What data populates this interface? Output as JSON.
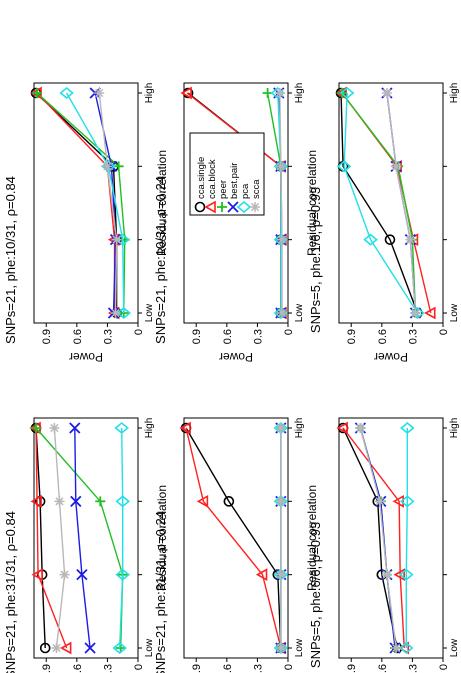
{
  "figure": {
    "orientation": "rotated 90° counter-clockwise",
    "panels": 6
  },
  "legend": [
    {
      "name": "cca.single",
      "color": "#000000",
      "marker": "circle"
    },
    {
      "name": "cca.block",
      "color": "#ff2020",
      "marker": "triangle"
    },
    {
      "name": "peer",
      "color": "#22c022",
      "marker": "plus"
    },
    {
      "name": "best.pair",
      "color": "#1c1ce6",
      "marker": "x"
    },
    {
      "name": "pca",
      "color": "#22e0e6",
      "marker": "diamond"
    },
    {
      "name": "scca",
      "color": "#b8b8b8",
      "marker": "asterisk"
    }
  ],
  "chart_data": [
    {
      "type": "line",
      "title": "SNPs=5, phe:1/6, ρ=0.93",
      "xlabel": "Residual correlation",
      "ylabel": "Power",
      "x_ticks": [
        "Low",
        "High"
      ],
      "y_ticks": [
        "0",
        "0.3",
        "0.6",
        "0.9"
      ],
      "ylim": [
        0,
        1.02
      ],
      "x": [
        1,
        2,
        3,
        4
      ],
      "series": [
        {
          "name": "cca.single",
          "values": [
            0.25,
            0.52,
            0.98,
            1.0
          ]
        },
        {
          "name": "cca.block",
          "values": [
            0.12,
            0.29,
            0.45,
            0.99
          ]
        },
        {
          "name": "peer",
          "values": [
            0.27,
            0.3,
            0.44,
            0.99
          ]
        },
        {
          "name": "best.pair",
          "values": [
            0.27,
            0.32,
            0.46,
            0.55
          ]
        },
        {
          "name": "pca",
          "values": [
            0.25,
            0.71,
            0.97,
            0.94
          ]
        },
        {
          "name": "scca",
          "values": [
            0.27,
            0.32,
            0.46,
            0.55
          ]
        }
      ]
    },
    {
      "type": "line",
      "title": "SNPs=21, phe:10/31, ρ=0.24",
      "xlabel": "Residual correlation",
      "ylabel": "Power",
      "x_ticks": [
        "Low",
        "High"
      ],
      "y_ticks": [
        "0",
        "0.3",
        "0.6",
        "0.9"
      ],
      "ylim": [
        0,
        1.02
      ],
      "x": [
        1,
        2,
        3,
        4
      ],
      "series": [
        {
          "name": "cca.single",
          "values": [
            0.07,
            0.07,
            0.07,
            0.98
          ]
        },
        {
          "name": "cca.block",
          "values": [
            0.06,
            0.06,
            0.07,
            0.99
          ]
        },
        {
          "name": "peer",
          "values": [
            0.07,
            0.07,
            0.07,
            0.2
          ]
        },
        {
          "name": "best.pair",
          "values": [
            0.07,
            0.07,
            0.07,
            0.09
          ]
        },
        {
          "name": "pca",
          "values": [
            0.07,
            0.07,
            0.07,
            0.1
          ]
        },
        {
          "name": "scca",
          "values": [
            0.06,
            0.06,
            0.07,
            0.08
          ]
        }
      ]
    },
    {
      "type": "line",
      "title": "SNPs=21, phe:10/31, ρ=0.84",
      "xlabel": "Residual correlation",
      "ylabel": "Power",
      "x_ticks": [
        "Low",
        "High"
      ],
      "y_ticks": [
        "0",
        "0.3",
        "0.6",
        "0.9"
      ],
      "ylim": [
        0,
        1.02
      ],
      "x": [
        1,
        2,
        3,
        4
      ],
      "series": [
        {
          "name": "cca.single",
          "values": [
            0.21,
            0.21,
            0.24,
            1.0
          ]
        },
        {
          "name": "cca.block",
          "values": [
            0.23,
            0.23,
            0.3,
            0.99
          ]
        },
        {
          "name": "peer",
          "values": [
            0.14,
            0.13,
            0.19,
            0.99
          ]
        },
        {
          "name": "best.pair",
          "values": [
            0.24,
            0.22,
            0.26,
            0.42
          ]
        },
        {
          "name": "pca",
          "values": [
            0.14,
            0.15,
            0.29,
            0.7
          ]
        },
        {
          "name": "scca",
          "values": [
            0.22,
            0.21,
            0.3,
            0.38
          ]
        }
      ]
    },
    {
      "type": "line",
      "title": "SNPs=5, phe:6/6, ρ=0.93",
      "xlabel": "Residual correlation",
      "ylabel": "Power",
      "x_ticks": [
        "Low",
        "High"
      ],
      "y_ticks": [
        "0",
        "0.3",
        "0.6",
        "0.9"
      ],
      "ylim": [
        0,
        1.02
      ],
      "x": [
        1,
        2,
        3,
        4
      ],
      "series": [
        {
          "name": "cca.single",
          "values": [
            0.45,
            0.6,
            0.64,
            0.98
          ]
        },
        {
          "name": "cca.block",
          "values": [
            0.38,
            0.42,
            0.43,
            0.98
          ]
        },
        {
          "name": "peer",
          "values": [
            0.47,
            0.55,
            0.61,
            0.81
          ]
        },
        {
          "name": "best.pair",
          "values": [
            0.47,
            0.55,
            0.61,
            0.81
          ]
        },
        {
          "name": "pca",
          "values": [
            0.36,
            0.36,
            0.35,
            0.35
          ]
        },
        {
          "name": "scca",
          "values": [
            0.46,
            0.55,
            0.62,
            0.81
          ]
        }
      ]
    },
    {
      "type": "line",
      "title": "SNPs=21, phe:31/31, ρ=0.24",
      "xlabel": "Residual correlation",
      "ylabel": "Power",
      "x_ticks": [
        "Low",
        "High"
      ],
      "y_ticks": [
        "0",
        "0.3",
        "0.6",
        "0.9"
      ],
      "ylim": [
        0,
        1.02
      ],
      "x": [
        1,
        2,
        3,
        4
      ],
      "series": [
        {
          "name": "cca.single",
          "values": [
            0.07,
            0.1,
            0.58,
            1.0
          ]
        },
        {
          "name": "cca.block",
          "values": [
            0.07,
            0.25,
            0.83,
            1.0
          ]
        },
        {
          "name": "peer",
          "values": [
            0.07,
            0.07,
            0.07,
            0.07
          ]
        },
        {
          "name": "best.pair",
          "values": [
            0.07,
            0.07,
            0.07,
            0.07
          ]
        },
        {
          "name": "pca",
          "values": [
            0.07,
            0.07,
            0.07,
            0.07
          ]
        },
        {
          "name": "scca",
          "values": [
            0.07,
            0.07,
            0.07,
            0.07
          ]
        }
      ]
    },
    {
      "type": "line",
      "title": "SNPs=21, phe:31/31, ρ=0.84",
      "xlabel": "Residual correlation",
      "ylabel": "Power",
      "x_ticks": [
        "Low",
        "High"
      ],
      "y_ticks": [
        "0",
        "0.3",
        "0.6",
        "0.9"
      ],
      "ylim": [
        0,
        1.02
      ],
      "x": [
        1,
        2,
        3,
        4
      ],
      "series": [
        {
          "name": "cca.single",
          "values": [
            0.91,
            0.94,
            0.96,
            1.0
          ]
        },
        {
          "name": "cca.block",
          "values": [
            0.7,
            0.98,
            0.99,
            1.0
          ]
        },
        {
          "name": "peer",
          "values": [
            0.17,
            0.15,
            0.37,
            1.0
          ]
        },
        {
          "name": "best.pair",
          "values": [
            0.47,
            0.55,
            0.61,
            0.62
          ]
        },
        {
          "name": "pca",
          "values": [
            0.18,
            0.15,
            0.15,
            0.16
          ]
        },
        {
          "name": "scca",
          "values": [
            0.8,
            0.72,
            0.77,
            0.82
          ]
        }
      ]
    }
  ]
}
